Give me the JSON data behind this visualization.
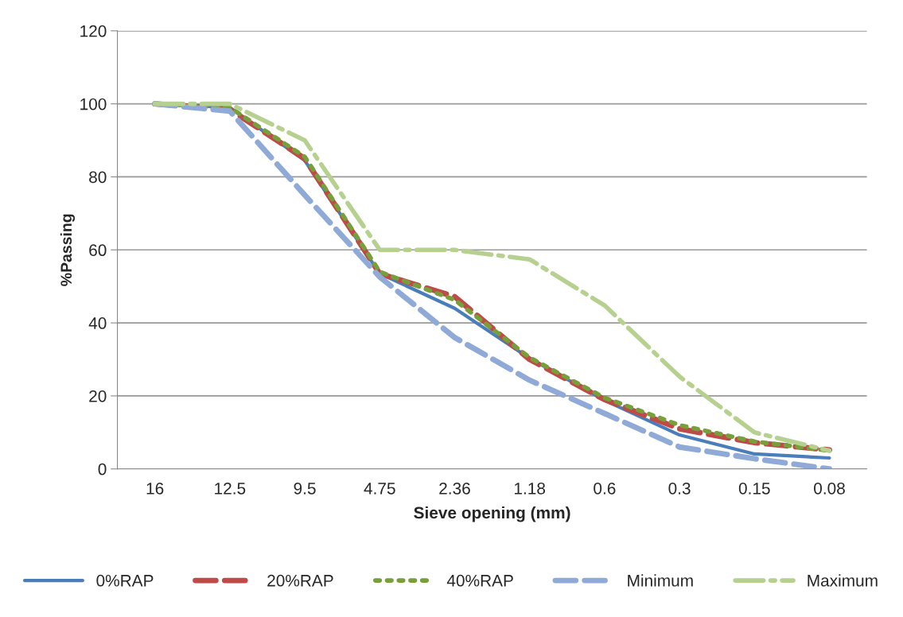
{
  "chart_data": {
    "type": "line",
    "xlabel": "Sieve opening (mm)",
    "ylabel": "%Passing",
    "categories": [
      "16",
      "12.5",
      "9.5",
      "4.75",
      "2.36",
      "1.18",
      "0.6",
      "0.3",
      "0.15",
      "0.08"
    ],
    "ylim": [
      0,
      120
    ],
    "yticks": [
      0,
      20,
      40,
      60,
      80,
      100,
      120
    ],
    "grid": "y",
    "legend": "bottom",
    "marker": "none",
    "series": [
      {
        "name": "0%RAP",
        "color": "#4a7ebb",
        "line_style": "solid",
        "values": [
          100,
          99,
          84.5,
          53.5,
          44,
          30.3,
          18.8,
          9.3,
          4.1,
          3
        ]
      },
      {
        "name": "20%RAP",
        "color": "#be4b48",
        "line_style": "dashed",
        "values": [
          100,
          98.5,
          85,
          53.5,
          47.2,
          30,
          19,
          11,
          7.2,
          5.2
        ]
      },
      {
        "name": "40%RAP",
        "color": "#77a03a",
        "line_style": "dotted",
        "values": [
          100,
          99,
          85.5,
          54,
          46.3,
          30.5,
          19.5,
          12,
          7.5,
          5
        ]
      },
      {
        "name": "Minimum",
        "color": "#8faad6",
        "line_style": "dashed",
        "values": [
          100,
          98,
          75,
          52.6,
          36,
          24.3,
          15.2,
          6,
          2.8,
          0
        ]
      },
      {
        "name": "Maximum",
        "color": "#b5d08f",
        "line_style": "dashdot",
        "values": [
          100,
          100,
          90,
          60,
          60,
          57.4,
          44.8,
          25.3,
          10,
          5
        ]
      }
    ]
  }
}
